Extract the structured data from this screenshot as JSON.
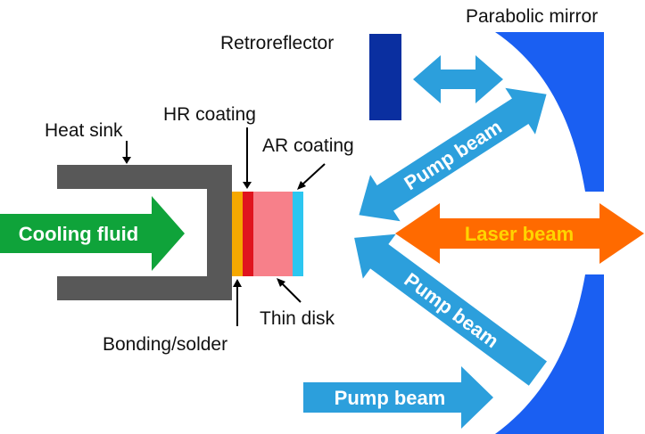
{
  "labels": {
    "parabolic_mirror": "Parabolic mirror",
    "retroreflector": "Retroreflector",
    "hr_coating": "HR coating",
    "heat_sink": "Heat sink",
    "ar_coating": "AR coating",
    "thin_disk": "Thin disk",
    "bonding_solder": "Bonding/solder"
  },
  "arrows": {
    "cooling_fluid": "Cooling fluid",
    "laser_beam": "Laser beam",
    "pump_beam_upper": "Pump beam",
    "pump_beam_lower": "Pump beam",
    "pump_beam_bottom": "Pump beam"
  },
  "colors": {
    "mirror": "#1a5ff2",
    "retroreflector": "#0a2fa0",
    "heat_sink": "#585858",
    "pump_beam": "#2c9fdc",
    "laser_beam": "#ff6a00",
    "laser_text": "#ffd400",
    "cooling_fluid": "#0fa33a",
    "bonding": "#f5a800",
    "hr_coating": "#e0141e",
    "thin_disk": "#f7808a",
    "ar_coating": "#2cc6f0"
  }
}
